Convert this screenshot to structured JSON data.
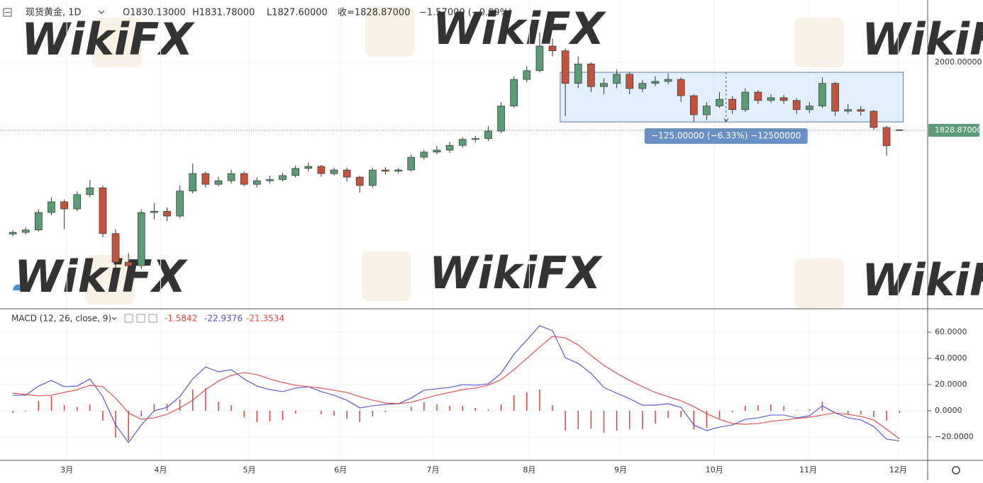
{
  "chart_data": [
    {
      "type": "candlestick",
      "title": "现货黄金, 1D",
      "ohlc_labels": [
        "O1830.13000",
        "H1831.78000",
        "L1827.60000",
        "收=1828.87000",
        "−1.57000 (−0.09%)"
      ],
      "watermark": "WikiFX",
      "up_color": "#5b9b76",
      "down_color": "#c4533d",
      "x": [
        0,
        1,
        2,
        3,
        4,
        5,
        6,
        7,
        8,
        9,
        10,
        11,
        12,
        13,
        14,
        15,
        16,
        17,
        18,
        19,
        20,
        21,
        22,
        23,
        24,
        25,
        26,
        27,
        28,
        29,
        30,
        31,
        32,
        33,
        34,
        35,
        36,
        37,
        38,
        39,
        40,
        41,
        42,
        43,
        44,
        45,
        46,
        47,
        48,
        49,
        50,
        51,
        52,
        53,
        54,
        55,
        56,
        57,
        58,
        59,
        60,
        61,
        62,
        63,
        64,
        65,
        66,
        67,
        68,
        69
      ],
      "ohlc": [
        [
          1568,
          1578,
          1562,
          1572
        ],
        [
          1572,
          1585,
          1566,
          1578
        ],
        [
          1578,
          1630,
          1574,
          1622
        ],
        [
          1622,
          1660,
          1615,
          1649
        ],
        [
          1649,
          1655,
          1580,
          1631
        ],
        [
          1631,
          1675,
          1625,
          1667
        ],
        [
          1667,
          1704,
          1660,
          1684
        ],
        [
          1684,
          1690,
          1560,
          1569
        ],
        [
          1569,
          1580,
          1470,
          1497
        ],
        [
          1497,
          1520,
          1451,
          1488
        ],
        [
          1488,
          1630,
          1480,
          1622
        ],
        [
          1622,
          1645,
          1605,
          1625
        ],
        [
          1625,
          1635,
          1600,
          1613
        ],
        [
          1613,
          1690,
          1608,
          1676
        ],
        [
          1676,
          1745,
          1670,
          1720
        ],
        [
          1720,
          1725,
          1685,
          1693
        ],
        [
          1693,
          1712,
          1688,
          1702
        ],
        [
          1702,
          1730,
          1695,
          1720
        ],
        [
          1720,
          1725,
          1688,
          1693
        ],
        [
          1693,
          1710,
          1685,
          1702
        ],
        [
          1702,
          1715,
          1695,
          1705
        ],
        [
          1705,
          1722,
          1700,
          1715
        ],
        [
          1715,
          1740,
          1710,
          1733
        ],
        [
          1733,
          1748,
          1725,
          1738
        ],
        [
          1738,
          1742,
          1712,
          1720
        ],
        [
          1720,
          1735,
          1715,
          1729
        ],
        [
          1729,
          1735,
          1700,
          1711
        ],
        [
          1711,
          1715,
          1672,
          1690
        ],
        [
          1690,
          1735,
          1685,
          1729
        ],
        [
          1729,
          1736,
          1718,
          1726
        ],
        [
          1726,
          1734,
          1720,
          1729
        ],
        [
          1729,
          1768,
          1725,
          1761
        ],
        [
          1761,
          1780,
          1755,
          1774
        ],
        [
          1774,
          1790,
          1768,
          1779
        ],
        [
          1779,
          1800,
          1772,
          1791
        ],
        [
          1791,
          1812,
          1785,
          1806
        ],
        [
          1806,
          1815,
          1798,
          1808
        ],
        [
          1808,
          1840,
          1802,
          1827
        ],
        [
          1827,
          1900,
          1822,
          1890
        ],
        [
          1890,
          1965,
          1885,
          1957
        ],
        [
          1957,
          1990,
          1950,
          1979
        ],
        [
          1979,
          2075,
          1975,
          2041
        ],
        [
          2041,
          2060,
          2015,
          2029
        ],
        [
          2029,
          2035,
          1865,
          1947
        ],
        [
          1947,
          2015,
          1935,
          1996
        ],
        [
          1996,
          2000,
          1925,
          1939
        ],
        [
          1939,
          1960,
          1920,
          1947
        ],
        [
          1947,
          1982,
          1935,
          1970
        ],
        [
          1970,
          1975,
          1920,
          1934
        ],
        [
          1934,
          1955,
          1925,
          1947
        ],
        [
          1947,
          1965,
          1940,
          1952
        ],
        [
          1952,
          1972,
          1945,
          1957
        ],
        [
          1957,
          1962,
          1900,
          1916
        ],
        [
          1916,
          1920,
          1850,
          1868
        ],
        [
          1868,
          1900,
          1855,
          1890
        ],
        [
          1890,
          1925,
          1885,
          1907
        ],
        [
          1907,
          1915,
          1870,
          1881
        ],
        [
          1881,
          1935,
          1875,
          1925
        ],
        [
          1925,
          1930,
          1895,
          1904
        ],
        [
          1904,
          1920,
          1898,
          1911
        ],
        [
          1911,
          1918,
          1895,
          1904
        ],
        [
          1904,
          1910,
          1870,
          1881
        ],
        [
          1881,
          1900,
          1872,
          1890
        ],
        [
          1890,
          1962,
          1885,
          1947
        ],
        [
          1947,
          1950,
          1865,
          1877
        ],
        [
          1877,
          1895,
          1870,
          1881
        ],
        [
          1881,
          1890,
          1866,
          1877
        ],
        [
          1877,
          1880,
          1830,
          1836
        ],
        [
          1836,
          1840,
          1765,
          1790
        ],
        [
          1830.13,
          1831.78,
          1827.6,
          1828.87
        ]
      ],
      "xlim": [
        -1,
        71.2
      ],
      "ylim": [
        1381.4,
        2156.9
      ],
      "xticks": [
        {
          "value": 4.2,
          "label": "3月"
        },
        {
          "value": 11.5,
          "label": "4月"
        },
        {
          "value": 18.4,
          "label": "5月"
        },
        {
          "value": 25.5,
          "label": "6月"
        },
        {
          "value": 32.7,
          "label": "7月"
        },
        {
          "value": 40.2,
          "label": "8月"
        },
        {
          "value": 47.3,
          "label": "9月"
        },
        {
          "value": 54.6,
          "label": "10月"
        },
        {
          "value": 61.9,
          "label": "11月"
        },
        {
          "value": 68.9,
          "label": "12月"
        }
      ],
      "yticks": [
        {
          "value": 2000,
          "label": "2000.00000"
        }
      ],
      "last_price": {
        "value": 1828.87,
        "label": "1828.87000"
      },
      "range_box": {
        "x": [
          42.6,
          69.3
        ],
        "y": [
          1975,
          1850
        ],
        "label": "−125.00000 (−6.33%) −12500000"
      },
      "grid": true
    },
    {
      "type": "macd",
      "title": "MACD (12, 26, close, 9)",
      "legend_values": [
        "-1.5842",
        "-22.9376",
        "-21.3534"
      ],
      "x": [
        0,
        1,
        2,
        3,
        4,
        5,
        6,
        7,
        8,
        9,
        10,
        11,
        12,
        13,
        14,
        15,
        16,
        17,
        18,
        19,
        20,
        21,
        22,
        23,
        24,
        25,
        26,
        27,
        28,
        29,
        30,
        31,
        32,
        33,
        34,
        35,
        36,
        37,
        38,
        39,
        40,
        41,
        42,
        43,
        44,
        45,
        46,
        47,
        48,
        49,
        50,
        51,
        52,
        53,
        54,
        55,
        56,
        57,
        58,
        59,
        60,
        61,
        62,
        63,
        64,
        65,
        66,
        67,
        68,
        69
      ],
      "histogram": {
        "color": "#e0403a",
        "values": [
          -1.6,
          -0.6,
          7.5,
          11.3,
          4.4,
          2.9,
          4.8,
          -7.6,
          -20.5,
          -22.7,
          -4.3,
          5.4,
          5.4,
          8.6,
          16.2,
          17.3,
          7,
          4.4,
          -4.9,
          -8.7,
          -8.1,
          -7,
          -2.2,
          0,
          -2.7,
          -3.8,
          -5.9,
          -8.6,
          -4.3,
          -1,
          0,
          3.2,
          6.5,
          4.9,
          3.8,
          3.8,
          2.2,
          1,
          4.8,
          11.8,
          14,
          16.3,
          4.3,
          -15.2,
          -14.1,
          -13.6,
          -16.8,
          -15.1,
          -14,
          -14.1,
          -9.7,
          -5.4,
          -4.9,
          -14,
          -12.9,
          -5.9,
          -1.1,
          3.8,
          4.3,
          4.9,
          3.8,
          0.5,
          1.1,
          7,
          0,
          -2.7,
          -2.7,
          -4.9,
          -7.6,
          -1.5842
        ]
      },
      "series": [
        {
          "color": "#4a4ae0",
          "values": [
            11.9,
            11.9,
            18.9,
            23.2,
            18.4,
            18.9,
            24.3,
            10.8,
            -10.8,
            -24.3,
            -10.8,
            0,
            2.7,
            10.8,
            24.3,
            33.5,
            29.7,
            31.4,
            24.3,
            18.9,
            16.2,
            14.6,
            17.3,
            18.4,
            14.6,
            11.9,
            8.1,
            2.2,
            3.8,
            4.9,
            5.4,
            9.7,
            15.7,
            16.8,
            17.8,
            20,
            19.5,
            20.5,
            28.6,
            43.2,
            54,
            64.9,
            61.1,
            40.5,
            36.2,
            28.6,
            17.8,
            13.5,
            9.2,
            4.3,
            4.3,
            5.4,
            2.7,
            -10.8,
            -15.1,
            -12.4,
            -10.8,
            -6.5,
            -5.4,
            -3.2,
            -3.2,
            -5.4,
            -3.8,
            3.8,
            -1.6,
            -5.4,
            -7,
            -11.9,
            -21.6,
            -22.9376
          ]
        },
        {
          "color": "#e8403a",
          "values": [
            13.5,
            12.5,
            11.4,
            11.9,
            14,
            16,
            19.5,
            18.4,
            9.7,
            -1.6,
            -6.5,
            -5.4,
            -2.7,
            2.2,
            8.1,
            16.2,
            22.7,
            27,
            29.2,
            27.6,
            24.3,
            21.6,
            19.5,
            18.4,
            17.3,
            15.7,
            14,
            10.8,
            8.1,
            5.9,
            5.4,
            6.5,
            9.2,
            11.9,
            14,
            16.2,
            17.3,
            19.5,
            23.8,
            31.4,
            40,
            48.6,
            56.8,
            55.7,
            50.3,
            42.2,
            34.6,
            28.6,
            23.2,
            18.4,
            14,
            10.8,
            7.6,
            3.2,
            -2.2,
            -6.5,
            -9.7,
            -10.3,
            -9.7,
            -8.1,
            -7,
            -5.9,
            -4.9,
            -3.2,
            -1.6,
            -2.7,
            -4.3,
            -7,
            -14,
            -21.3534
          ]
        }
      ],
      "xlim": [
        -1,
        71.2
      ],
      "ylim": [
        -37.8,
        77.3
      ],
      "yticks": [
        {
          "value": 60,
          "label": "60.0000"
        },
        {
          "value": 40,
          "label": "40.0000"
        },
        {
          "value": 20,
          "label": "20.0000"
        },
        {
          "value": 0,
          "label": "0.0000"
        },
        {
          "value": -20,
          "label": "−20.0000"
        }
      ],
      "grid": true
    }
  ]
}
